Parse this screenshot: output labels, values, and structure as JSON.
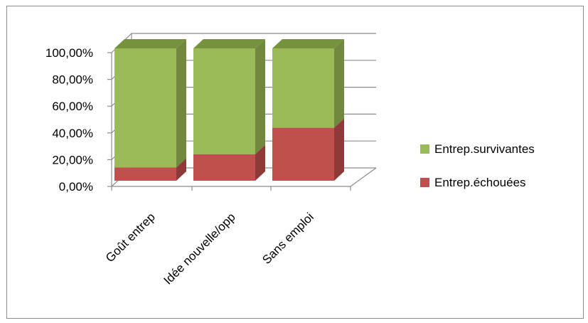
{
  "chart_data": {
    "type": "bar",
    "stacked": true,
    "three_d": true,
    "title": "",
    "xlabel": "",
    "ylabel": "",
    "ylim": [
      0,
      100
    ],
    "y_ticks": [
      "0,00%",
      "20,00%",
      "40,00%",
      "60,00%",
      "80,00%",
      "100,00%"
    ],
    "categories": [
      "Goût entrep",
      "Idée nouvelle/opp",
      "Sans emploi"
    ],
    "series": [
      {
        "name": "Entrep.échouées",
        "values": [
          10,
          20,
          40
        ],
        "color": "#c0504d",
        "color_dark": "#8e3a38",
        "color_top": "#d36b68"
      },
      {
        "name": "Entrep.survivantes",
        "values": [
          90,
          80,
          60
        ],
        "color": "#9bbb59",
        "color_dark": "#71893f",
        "color_top": "#76923c"
      }
    ],
    "legend_order": [
      "Entrep.survivantes",
      "Entrep.échouées"
    ],
    "legend_position": "right",
    "grid": true
  }
}
